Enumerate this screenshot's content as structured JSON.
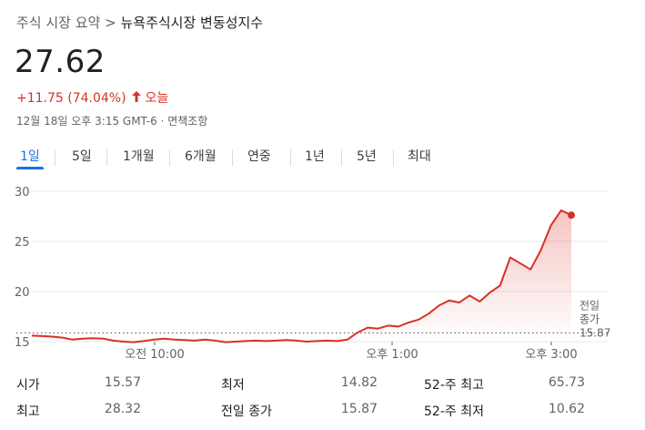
{
  "breadcrumb": {
    "parent": "주식 시장 요약",
    "separator": ">",
    "current": "뉴욕주식시장 변동성지수"
  },
  "quote": {
    "price": "27.62",
    "change": "+11.75 (74.04%)",
    "direction_icon": "arrow-up-icon",
    "period": "오늘",
    "timestamp": "12월 18일 오후 3:15 GMT-6 · 면책조항"
  },
  "tabs": [
    {
      "label": "1일",
      "active": true
    },
    {
      "label": "5일",
      "active": false
    },
    {
      "label": "1개월",
      "active": false
    },
    {
      "label": "6개월",
      "active": false
    },
    {
      "label": "연중",
      "active": false
    },
    {
      "label": "1년",
      "active": false
    },
    {
      "label": "5년",
      "active": false
    },
    {
      "label": "최대",
      "active": false
    }
  ],
  "chart_data": {
    "type": "area",
    "x_tick_labels": [
      "오전 10:00",
      "오후 1:00",
      "오후 3:00"
    ],
    "y_tick_labels": [
      "30",
      "25",
      "20",
      "15"
    ],
    "ylim": [
      15,
      30
    ],
    "previous_close_label": "전일 종가",
    "previous_close": 15.87,
    "previous_close_text": "15.87",
    "line_color": "#d93025",
    "series": [
      {
        "values": [
          15.6,
          15.55,
          15.5,
          15.4,
          15.2,
          15.3,
          15.35,
          15.3,
          15.1,
          15.0,
          14.95,
          15.05,
          15.2,
          15.3,
          15.2,
          15.15,
          15.1,
          15.2,
          15.1,
          14.95,
          15.0,
          15.05,
          15.1,
          15.05,
          15.1,
          15.15,
          15.1,
          15.0,
          15.05,
          15.1,
          15.05,
          15.2,
          15.9,
          16.4,
          16.3,
          16.6,
          16.5,
          16.9,
          17.2,
          17.8,
          18.6,
          19.1,
          18.9,
          19.6,
          19.0,
          19.9,
          20.6,
          23.4,
          22.8,
          22.2,
          24.1,
          26.6,
          28.1,
          27.62
        ]
      }
    ]
  },
  "stats": [
    {
      "label": "시가",
      "value": "15.57"
    },
    {
      "label": "최저",
      "value": "14.82"
    },
    {
      "label": "52-주 최고",
      "value": "65.73"
    },
    {
      "label": "최고",
      "value": "28.32"
    },
    {
      "label": "전일 종가",
      "value": "15.87"
    },
    {
      "label": "52-주 최저",
      "value": "10.62"
    }
  ]
}
